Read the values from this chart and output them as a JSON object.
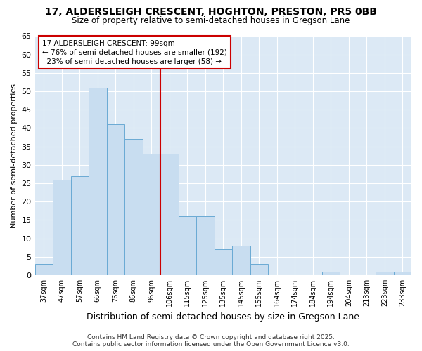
{
  "title": "17, ALDERSLEIGH CRESCENT, HOGHTON, PRESTON, PR5 0BB",
  "subtitle": "Size of property relative to semi-detached houses in Gregson Lane",
  "xlabel": "Distribution of semi-detached houses by size in Gregson Lane",
  "ylabel": "Number of semi-detached properties",
  "categories": [
    "37sqm",
    "47sqm",
    "57sqm",
    "66sqm",
    "76sqm",
    "86sqm",
    "96sqm",
    "106sqm",
    "115sqm",
    "125sqm",
    "135sqm",
    "145sqm",
    "155sqm",
    "164sqm",
    "174sqm",
    "184sqm",
    "194sqm",
    "204sqm",
    "213sqm",
    "223sqm",
    "233sqm"
  ],
  "values": [
    3,
    26,
    27,
    51,
    41,
    37,
    33,
    33,
    16,
    16,
    7,
    8,
    3,
    0,
    0,
    0,
    1,
    0,
    0,
    1,
    1
  ],
  "bar_color": "#c8ddf0",
  "bar_edge_color": "#6aaad4",
  "property_label": "17 ALDERSLEIGH CRESCENT: 99sqm",
  "pct_smaller": 76,
  "n_smaller": 192,
  "pct_larger": 23,
  "n_larger": 58,
  "vline_color": "#cc0000",
  "annotation_box_color": "#cc0000",
  "figure_bg": "#ffffff",
  "axes_bg": "#dce9f5",
  "grid_color": "#ffffff",
  "footer": "Contains HM Land Registry data © Crown copyright and database right 2025.\nContains public sector information licensed under the Open Government Licence v3.0.",
  "ylim": [
    0,
    65
  ],
  "yticks": [
    0,
    5,
    10,
    15,
    20,
    25,
    30,
    35,
    40,
    45,
    50,
    55,
    60,
    65
  ],
  "vline_x_index": 6.5
}
